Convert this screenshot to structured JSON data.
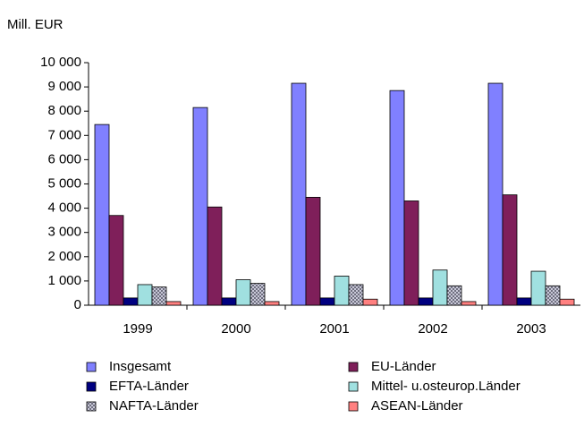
{
  "chart_data": {
    "type": "bar",
    "y_label": "Mill. EUR",
    "categories": [
      "1999",
      "2000",
      "2001",
      "2002",
      "2003"
    ],
    "series": [
      {
        "name": "Insgesamt",
        "color": "#8080ff",
        "values": [
          7450,
          8150,
          9150,
          8850,
          9150
        ]
      },
      {
        "name": "EU-Länder",
        "color": "#7f1f5a",
        "values": [
          3700,
          4050,
          4450,
          4300,
          4550
        ]
      },
      {
        "name": "EFTA-Länder",
        "color": "#000080",
        "values": [
          300,
          300,
          300,
          300,
          300
        ]
      },
      {
        "name": "Mittel- u.osteurop.Länder",
        "color": "#a0e0e0",
        "values": [
          850,
          1050,
          1200,
          1450,
          1400
        ]
      },
      {
        "name": "NAFTA-Länder",
        "color": "#a8a8b8",
        "values": [
          750,
          900,
          850,
          800,
          800
        ]
      },
      {
        "name": "ASEAN-Länder",
        "color": "#ff8080",
        "values": [
          150,
          150,
          250,
          150,
          250
        ]
      }
    ],
    "ylim": [
      0,
      10000
    ],
    "yticks": [
      0,
      {
        "value": 1000,
        "label": "1 000"
      },
      {
        "value": 2000,
        "label": "2 000"
      },
      {
        "value": 3000,
        "label": "3 000"
      },
      {
        "value": 4000,
        "label": "4 000"
      },
      {
        "value": 5000,
        "label": "5 000"
      },
      {
        "value": 6000,
        "label": "6 000"
      },
      {
        "value": 7000,
        "label": "7 000"
      },
      {
        "value": 8000,
        "label": "8 000"
      },
      {
        "value": 9000,
        "label": "9 000"
      },
      {
        "value": 10000,
        "label": "10 000"
      }
    ],
    "grid": false
  }
}
